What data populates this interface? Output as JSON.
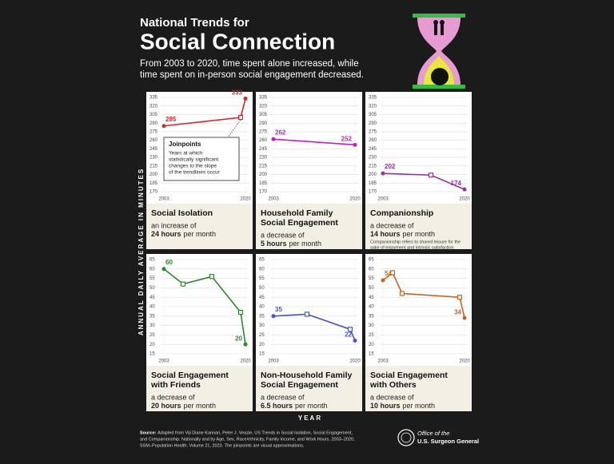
{
  "header": {
    "title_small": "National Trends for",
    "title_large": "Social Connection",
    "subtitle": [
      "From 2003 to 2020, time spent alone increased, while",
      "time spent on in-person social engagement decreased."
    ]
  },
  "y_axis_label": "ANNUAL DAILY AVERAGE IN MINUTES",
  "x_axis_label": "YEAR",
  "source": {
    "label": "Source:",
    "lines": [
      "Adapted from Viji Diane Kannan, Peter J. Veazie, US Trends in Social Isolation, Social Engagement,",
      "and Companionship: Nationally and by Age, Sex, Race/ethnicity, Family Income, and Work Hours, 2003–2020,",
      "SSM–Population Health, Volume 21, 2023. The joinpoints are visual approximations."
    ]
  },
  "office": [
    "Office of the",
    "U.S. Surgeon General"
  ],
  "chart_data": [
    {
      "type": "line",
      "title": [
        "Social Isolation"
      ],
      "description": "an increase of",
      "highlight": "24 hours",
      "suffix": "per month",
      "x": [
        2003,
        2019,
        2020
      ],
      "values": [
        285,
        300,
        333
      ],
      "color": "#d62828",
      "xlim": [
        2003,
        2020
      ],
      "xticks": [
        2003,
        2020
      ],
      "ylim": [
        170,
        335
      ],
      "yticks": [
        170,
        185,
        200,
        215,
        230,
        245,
        260,
        275,
        290,
        305,
        320,
        335
      ],
      "grid": true,
      "annotation": {
        "title": "Joinpoints",
        "lines": [
          "Years at which",
          "statistically significant",
          "changes to the slope",
          "of the trendlines occur"
        ]
      }
    },
    {
      "type": "line",
      "title": [
        "Household Family",
        "Social Engagement"
      ],
      "description": "a decrease of",
      "highlight": "5 hours",
      "suffix": "per month",
      "x": [
        2003,
        2020
      ],
      "values": [
        262,
        252
      ],
      "color": "#c21fc2",
      "xlim": [
        2003,
        2020
      ],
      "xticks": [
        2003,
        2020
      ],
      "ylim": [
        170,
        335
      ],
      "yticks": [
        170,
        185,
        200,
        215,
        230,
        245,
        260,
        275,
        290,
        305,
        320,
        335
      ],
      "grid": true
    },
    {
      "type": "line",
      "title": [
        "Companionship"
      ],
      "description": "a decrease of",
      "highlight": "14 hours",
      "suffix": "per month",
      "x": [
        2003,
        2013,
        2020
      ],
      "values": [
        202,
        199,
        174
      ],
      "color": "#9a2f9e",
      "xlim": [
        2003,
        2020
      ],
      "xticks": [
        2003,
        2020
      ],
      "ylim": [
        170,
        335
      ],
      "yticks": [
        170,
        185,
        200,
        215,
        230,
        245,
        260,
        275,
        290,
        305,
        320,
        335
      ],
      "grid": true,
      "note": [
        "Companionship refers to shared leisure for the",
        "sake of enjoyment and intrinsic satisfaction"
      ]
    },
    {
      "type": "line",
      "title": [
        "Social Engagement",
        "with Friends"
      ],
      "description": "a decrease of",
      "highlight": "20 hours",
      "suffix": "per month",
      "x": [
        2003,
        2007,
        2013,
        2019,
        2020
      ],
      "values": [
        60,
        52,
        56,
        37,
        20
      ],
      "color": "#2a8a2a",
      "xlim": [
        2003,
        2020
      ],
      "xticks": [
        2003,
        2020
      ],
      "ylim": [
        15,
        65
      ],
      "yticks": [
        15,
        20,
        25,
        30,
        35,
        40,
        45,
        50,
        55,
        60,
        65
      ],
      "grid": true
    },
    {
      "type": "line",
      "title": [
        "Non-Household Family",
        "Social Engagement"
      ],
      "description": "a decrease of",
      "highlight": "6.5 hours",
      "suffix": "per month",
      "x": [
        2003,
        2010,
        2019,
        2020
      ],
      "values": [
        35,
        36,
        28,
        22
      ],
      "color": "#4a55c8",
      "xlim": [
        2003,
        2020
      ],
      "xticks": [
        2003,
        2020
      ],
      "ylim": [
        15,
        65
      ],
      "yticks": [
        15,
        20,
        25,
        30,
        35,
        40,
        45,
        50,
        55,
        60,
        65
      ],
      "grid": true
    },
    {
      "type": "line",
      "title": [
        "Social Engagement",
        "with Others"
      ],
      "description": "a decrease of",
      "highlight": "10 hours",
      "suffix": "per month",
      "x": [
        2003,
        2005,
        2007,
        2019,
        2020
      ],
      "values": [
        54,
        58,
        47,
        45,
        34
      ],
      "color": "#c8641a",
      "xlim": [
        2003,
        2020
      ],
      "xticks": [
        2003,
        2020
      ],
      "ylim": [
        15,
        65
      ],
      "yticks": [
        15,
        20,
        25,
        30,
        35,
        40,
        45,
        50,
        55,
        60,
        65
      ],
      "grid": true
    }
  ]
}
